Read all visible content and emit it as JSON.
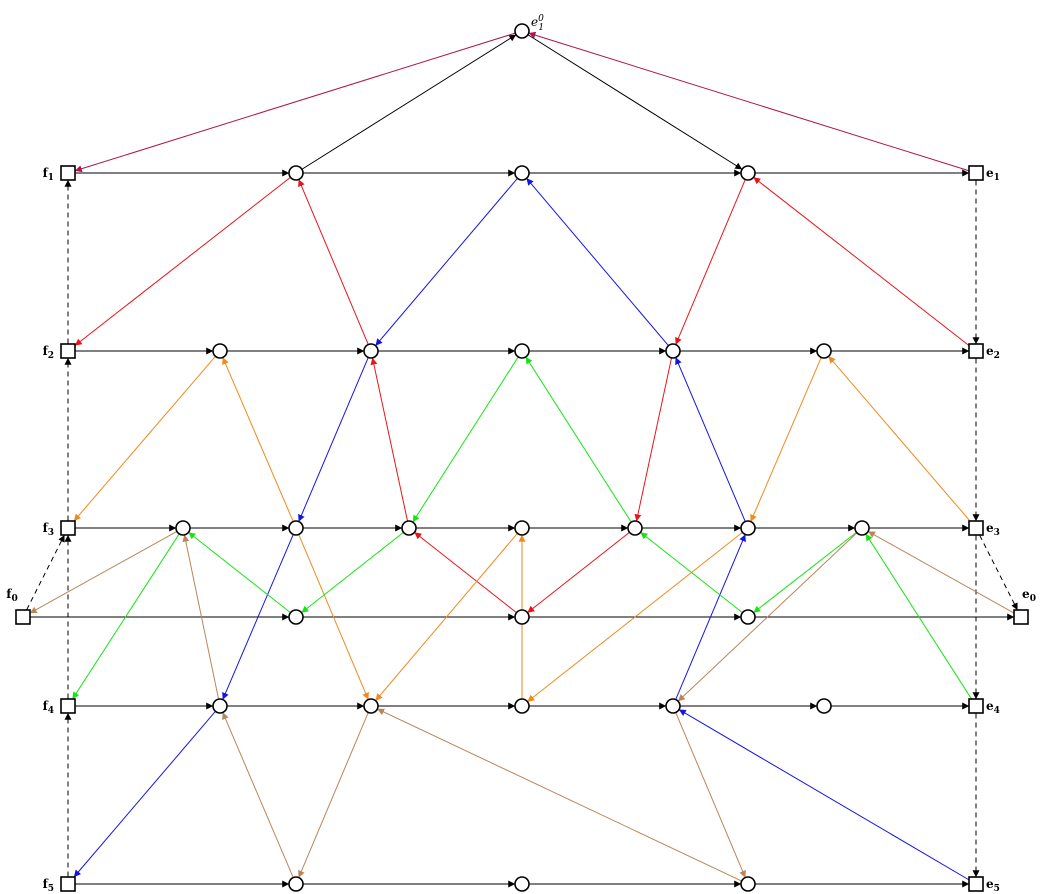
{
  "colors": {
    "black": "#000000",
    "crimson": "#b0124f",
    "red": "#e8141a",
    "blue": "#1414e6",
    "orange": "#f08a1e",
    "green": "#14e614",
    "brown": "#b8865a"
  },
  "nodes": [
    {
      "id": "e10",
      "shape": "circle",
      "label": "e",
      "sub": "1",
      "sup": "0",
      "italic": true
    },
    {
      "id": "f1",
      "shape": "square",
      "label": "f",
      "sub": "1",
      "bold": true
    },
    {
      "id": "n1a",
      "shape": "circle"
    },
    {
      "id": "n1b",
      "shape": "circle"
    },
    {
      "id": "n1c",
      "shape": "circle"
    },
    {
      "id": "e1",
      "shape": "square",
      "label": "e",
      "sub": "1",
      "bold": true
    },
    {
      "id": "f2",
      "shape": "square",
      "label": "f",
      "sub": "2",
      "bold": true
    },
    {
      "id": "n2a",
      "shape": "circle"
    },
    {
      "id": "n2b",
      "shape": "circle"
    },
    {
      "id": "n2c",
      "shape": "circle"
    },
    {
      "id": "n2d",
      "shape": "circle"
    },
    {
      "id": "n2e",
      "shape": "circle"
    },
    {
      "id": "e2",
      "shape": "square",
      "label": "e",
      "sub": "2",
      "bold": true
    },
    {
      "id": "f3",
      "shape": "square",
      "label": "f",
      "sub": "3",
      "bold": true
    },
    {
      "id": "n3a",
      "shape": "circle"
    },
    {
      "id": "n3b",
      "shape": "circle"
    },
    {
      "id": "n3c",
      "shape": "circle"
    },
    {
      "id": "n3d",
      "shape": "circle"
    },
    {
      "id": "n3e",
      "shape": "circle"
    },
    {
      "id": "n3f",
      "shape": "circle"
    },
    {
      "id": "n3g",
      "shape": "circle"
    },
    {
      "id": "e3",
      "shape": "square",
      "label": "e",
      "sub": "3",
      "bold": true
    },
    {
      "id": "f0",
      "shape": "square",
      "label": "f",
      "sub": "0",
      "bold": true
    },
    {
      "id": "n0a",
      "shape": "circle"
    },
    {
      "id": "n0b",
      "shape": "circle"
    },
    {
      "id": "n0c",
      "shape": "circle"
    },
    {
      "id": "e0",
      "shape": "square",
      "label": "e",
      "sub": "0",
      "bold": true
    },
    {
      "id": "f4",
      "shape": "square",
      "label": "f",
      "sub": "4",
      "bold": true
    },
    {
      "id": "n4a",
      "shape": "circle"
    },
    {
      "id": "n4b",
      "shape": "circle"
    },
    {
      "id": "n4c",
      "shape": "circle"
    },
    {
      "id": "n4d",
      "shape": "circle"
    },
    {
      "id": "n4e",
      "shape": "circle"
    },
    {
      "id": "e4",
      "shape": "square",
      "label": "e",
      "sub": "4",
      "bold": true
    },
    {
      "id": "f5",
      "shape": "square",
      "label": "f",
      "sub": "5",
      "bold": true
    },
    {
      "id": "n5a",
      "shape": "circle"
    },
    {
      "id": "n5b",
      "shape": "circle"
    },
    {
      "id": "n5c",
      "shape": "circle"
    },
    {
      "id": "e5",
      "shape": "square",
      "label": "e",
      "sub": "5",
      "bold": true
    }
  ],
  "edges": [
    {
      "from": "f1",
      "to": "n1a",
      "color": "black"
    },
    {
      "from": "n1a",
      "to": "n1b",
      "color": "black"
    },
    {
      "from": "n1b",
      "to": "n1c",
      "color": "black"
    },
    {
      "from": "n1c",
      "to": "e1",
      "color": "black"
    },
    {
      "from": "f2",
      "to": "n2a",
      "color": "black"
    },
    {
      "from": "n2a",
      "to": "n2b",
      "color": "black"
    },
    {
      "from": "n2b",
      "to": "n2c",
      "color": "black"
    },
    {
      "from": "n2c",
      "to": "n2d",
      "color": "black"
    },
    {
      "from": "n2d",
      "to": "n2e",
      "color": "black"
    },
    {
      "from": "n2e",
      "to": "e2",
      "color": "black"
    },
    {
      "from": "f3",
      "to": "n3a",
      "color": "black"
    },
    {
      "from": "n3a",
      "to": "n3b",
      "color": "black"
    },
    {
      "from": "n3b",
      "to": "n3c",
      "color": "black"
    },
    {
      "from": "n3c",
      "to": "n3d",
      "color": "black"
    },
    {
      "from": "n3d",
      "to": "n3e",
      "color": "black"
    },
    {
      "from": "n3e",
      "to": "n3f",
      "color": "black"
    },
    {
      "from": "n3f",
      "to": "n3g",
      "color": "black"
    },
    {
      "from": "n3g",
      "to": "e3",
      "color": "black"
    },
    {
      "from": "f0",
      "to": "n0a",
      "color": "black"
    },
    {
      "from": "n0a",
      "to": "n0b",
      "color": "black"
    },
    {
      "from": "n0b",
      "to": "n0c",
      "color": "black"
    },
    {
      "from": "n0c",
      "to": "e0",
      "color": "black"
    },
    {
      "from": "f4",
      "to": "n4a",
      "color": "black"
    },
    {
      "from": "n4a",
      "to": "n4b",
      "color": "black"
    },
    {
      "from": "n4b",
      "to": "n4c",
      "color": "black"
    },
    {
      "from": "n4c",
      "to": "n4d",
      "color": "black"
    },
    {
      "from": "n4d",
      "to": "n4e",
      "color": "black"
    },
    {
      "from": "n4e",
      "to": "e4",
      "color": "black"
    },
    {
      "from": "f5",
      "to": "n5a",
      "color": "black"
    },
    {
      "from": "n5a",
      "to": "n5b",
      "color": "black"
    },
    {
      "from": "n5b",
      "to": "n5c",
      "color": "black"
    },
    {
      "from": "n5c",
      "to": "e5",
      "color": "black"
    },
    {
      "from": "n1a",
      "to": "e10",
      "color": "black"
    },
    {
      "from": "e10",
      "to": "n1c",
      "color": "black"
    },
    {
      "from": "e10",
      "to": "f1",
      "color": "crimson"
    },
    {
      "from": "e1",
      "to": "e10",
      "color": "crimson"
    },
    {
      "from": "f5",
      "to": "f4",
      "color": "black",
      "dashed": true
    },
    {
      "from": "f4",
      "to": "f3",
      "color": "black",
      "dashed": true
    },
    {
      "from": "f3",
      "to": "f2",
      "color": "black",
      "dashed": true
    },
    {
      "from": "f2",
      "to": "f1",
      "color": "black",
      "dashed": true
    },
    {
      "from": "f0",
      "to": "f3",
      "color": "black",
      "dashed": true
    },
    {
      "from": "e1",
      "to": "e2",
      "color": "black",
      "dashed": true
    },
    {
      "from": "e2",
      "to": "e3",
      "color": "black",
      "dashed": true
    },
    {
      "from": "e3",
      "to": "e0",
      "color": "black",
      "dashed": true
    },
    {
      "from": "e3",
      "to": "e4",
      "color": "black",
      "dashed": true
    },
    {
      "from": "e4",
      "to": "e5",
      "color": "black",
      "dashed": true
    },
    {
      "from": "n1a",
      "to": "f2",
      "color": "red"
    },
    {
      "from": "n2b",
      "to": "n1a",
      "color": "red"
    },
    {
      "from": "n1c",
      "to": "n2d",
      "color": "red"
    },
    {
      "from": "e2",
      "to": "n1c",
      "color": "red"
    },
    {
      "from": "n3c",
      "to": "n2b",
      "color": "red"
    },
    {
      "from": "n2d",
      "to": "n3e",
      "color": "red"
    },
    {
      "from": "n0b",
      "to": "n3c",
      "color": "red"
    },
    {
      "from": "n3e",
      "to": "n0b",
      "color": "red"
    },
    {
      "from": "n1b",
      "to": "n2b",
      "color": "blue"
    },
    {
      "from": "n2d",
      "to": "n1b",
      "color": "blue"
    },
    {
      "from": "n2b",
      "to": "n3b",
      "color": "blue"
    },
    {
      "from": "n3f",
      "to": "n2d",
      "color": "blue"
    },
    {
      "from": "n3b",
      "to": "n4a",
      "color": "blue"
    },
    {
      "from": "n4d",
      "to": "n3f",
      "color": "blue"
    },
    {
      "from": "n4a",
      "to": "f5",
      "color": "blue"
    },
    {
      "from": "e5",
      "to": "n4d",
      "color": "blue"
    },
    {
      "from": "n2a",
      "to": "f3",
      "color": "orange"
    },
    {
      "from": "n3b",
      "to": "n2a",
      "color": "orange"
    },
    {
      "from": "n2e",
      "to": "n3f",
      "color": "orange"
    },
    {
      "from": "e3",
      "to": "n2e",
      "color": "orange"
    },
    {
      "from": "n3b",
      "to": "n4b",
      "color": "orange"
    },
    {
      "from": "n3d",
      "to": "n4b",
      "color": "orange"
    },
    {
      "from": "n4c",
      "to": "n3d",
      "color": "orange"
    },
    {
      "from": "n3f",
      "to": "n4c",
      "color": "orange"
    },
    {
      "from": "n2c",
      "to": "n3c",
      "color": "green"
    },
    {
      "from": "n3e",
      "to": "n2c",
      "color": "green"
    },
    {
      "from": "n3a",
      "to": "f4",
      "color": "green"
    },
    {
      "from": "n0a",
      "to": "n3a",
      "color": "green"
    },
    {
      "from": "n3c",
      "to": "n0a",
      "color": "green"
    },
    {
      "from": "n0c",
      "to": "n3e",
      "color": "green"
    },
    {
      "from": "n3g",
      "to": "n0c",
      "color": "green"
    },
    {
      "from": "e4",
      "to": "n3g",
      "color": "green"
    },
    {
      "from": "n3a",
      "to": "f0",
      "color": "brown"
    },
    {
      "from": "e0",
      "to": "n3g",
      "color": "brown"
    },
    {
      "from": "n4a",
      "to": "n3a",
      "color": "brown"
    },
    {
      "from": "n3g",
      "to": "n4d",
      "color": "brown"
    },
    {
      "from": "n5a",
      "to": "n4a",
      "color": "brown"
    },
    {
      "from": "n4d",
      "to": "n5c",
      "color": "brown"
    },
    {
      "from": "n4b",
      "to": "n5a",
      "color": "brown"
    },
    {
      "from": "n5c",
      "to": "n4b",
      "color": "brown"
    }
  ]
}
